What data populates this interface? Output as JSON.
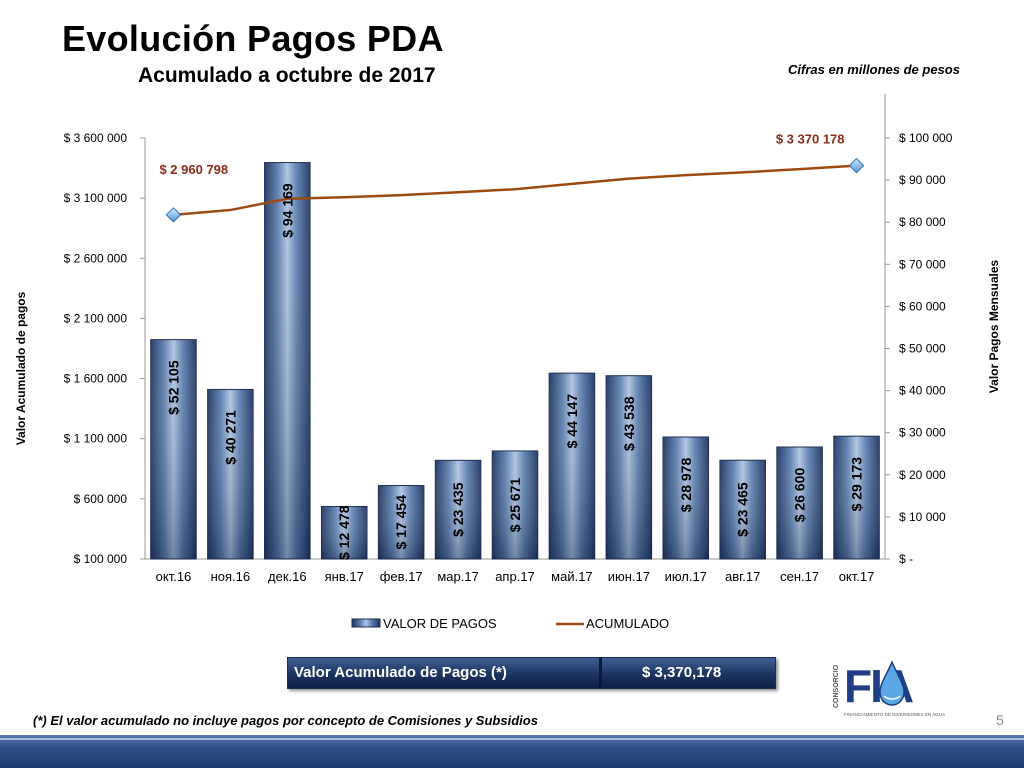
{
  "slide": {
    "title": "Evolución Pagos PDA",
    "subtitle": "Acumulado a octubre de 2017",
    "units_note": "Cifras en millones de pesos",
    "summary_label": "Valor Acumulado de Pagos (*)",
    "summary_value": "$    3,370,178",
    "footnote": "(*) El valor acumulado no incluye pagos por concepto de Comisiones y Subsidios",
    "page_number": "5",
    "logo": {
      "side_text": "CONSORCIO",
      "letters": "FIA",
      "tagline": "FINANCIAMIENTO DE INVERSIONES EN AGUA"
    }
  },
  "chart_data": {
    "type": "bar",
    "categories": [
      "окт.16",
      "ноя.16",
      "дек.16",
      "янв.17",
      "фев.17",
      "мар.17",
      "апр.17",
      "май.17",
      "июн.17",
      "июл.17",
      "авг.17",
      "сен.17",
      "окт.17"
    ],
    "series": [
      {
        "name": "VALOR DE PAGOS",
        "type": "bar",
        "axis": "right",
        "values": [
          52105,
          40271,
          94169,
          12478,
          17454,
          23435,
          25671,
          44147,
          43538,
          28978,
          23465,
          26600,
          29173
        ],
        "labels": [
          "$ 52 105",
          "$ 40 271",
          "$ 94 169",
          "$ 12 478",
          "$ 17 454",
          "$ 23 435",
          "$ 25 671",
          "$ 44 147",
          "$ 43 538",
          "$ 28 978",
          "$ 23 465",
          "$ 26 600",
          "$ 29 173"
        ]
      },
      {
        "name": "ACUMULADO",
        "type": "line",
        "axis": "left",
        "values": [
          2960798,
          3001069,
          3095238,
          3107716,
          3125170,
          3148605,
          3174276,
          3218423,
          3261961,
          3290939,
          3314404,
          3341004,
          3370178
        ],
        "point_labels": [
          {
            "index": 0,
            "text": "$ 2 960 798"
          },
          {
            "index": 12,
            "text": "$ 3 370 178"
          }
        ]
      }
    ],
    "y_left": {
      "label": "Valor Acumulado de pagos",
      "min": 100000,
      "max": 3600000,
      "ticks": [
        100000,
        600000,
        1100000,
        1600000,
        2100000,
        2600000,
        3100000,
        3600000
      ],
      "tick_labels": [
        "$ 100 000",
        "$ 600 000",
        "$ 1 100 000",
        "$ 1 600 000",
        "$ 2 100 000",
        "$ 2 600 000",
        "$ 3 100 000",
        "$ 3 600 000"
      ]
    },
    "y_right": {
      "label": "Valor Pagos Mensuales",
      "min": 0,
      "max": 100000,
      "ticks": [
        0,
        10000,
        20000,
        30000,
        40000,
        50000,
        60000,
        70000,
        80000,
        90000,
        100000
      ],
      "tick_labels": [
        "$ -",
        "$ 10 000",
        "$ 20 000",
        "$ 30 000",
        "$ 40 000",
        "$ 50 000",
        "$ 60 000",
        "$ 70 000",
        "$ 80 000",
        "$ 90 000",
        "$ 100 000"
      ]
    },
    "legend": {
      "position": "bottom",
      "entries": [
        "VALOR DE PAGOS",
        "ACUMULADO"
      ]
    },
    "grid": false,
    "colors": {
      "bar": "#2c4a7a",
      "bar_highlight": "#9db4d6",
      "line": "#9c4a12",
      "marker": "#7fb2e5",
      "point_label": "#8b2a1a"
    }
  }
}
